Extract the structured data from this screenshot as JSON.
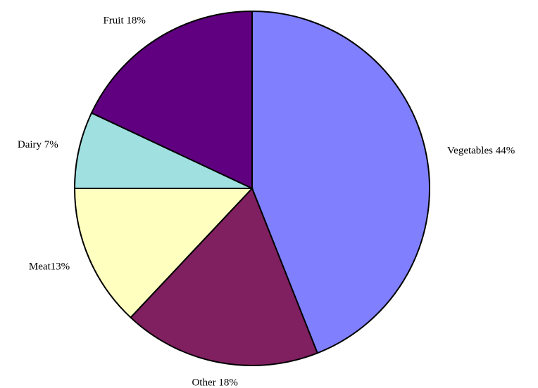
{
  "chart_data": {
    "type": "pie",
    "categories": [
      "Vegetables 44%",
      "Other 18%",
      "Meat13%",
      "Dairy 7%",
      "Fruit 18%"
    ],
    "values": [
      44,
      18,
      13,
      7,
      18
    ],
    "colors": [
      "#8080ff",
      "#802060",
      "#ffffc0",
      "#a0e0e0",
      "#600080"
    ]
  }
}
